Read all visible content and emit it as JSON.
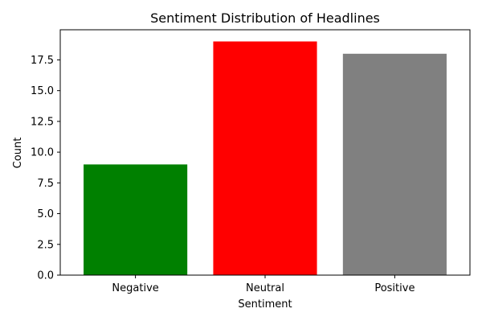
{
  "chart_data": {
    "type": "bar",
    "title": "Sentiment Distribution of Headlines",
    "xlabel": "Sentiment",
    "ylabel": "Count",
    "categories": [
      "Negative",
      "Neutral",
      "Positive"
    ],
    "values": [
      9,
      19,
      18
    ],
    "colors": [
      "#008000",
      "#ff0000",
      "#808080"
    ],
    "ylim": [
      0,
      19.95
    ],
    "yticks": [
      0.0,
      2.5,
      5.0,
      7.5,
      10.0,
      12.5,
      15.0,
      17.5
    ],
    "ytick_labels": [
      "0.0",
      "2.5",
      "5.0",
      "7.5",
      "10.0",
      "12.5",
      "15.0",
      "17.5"
    ],
    "grid": false,
    "legend": "none"
  }
}
